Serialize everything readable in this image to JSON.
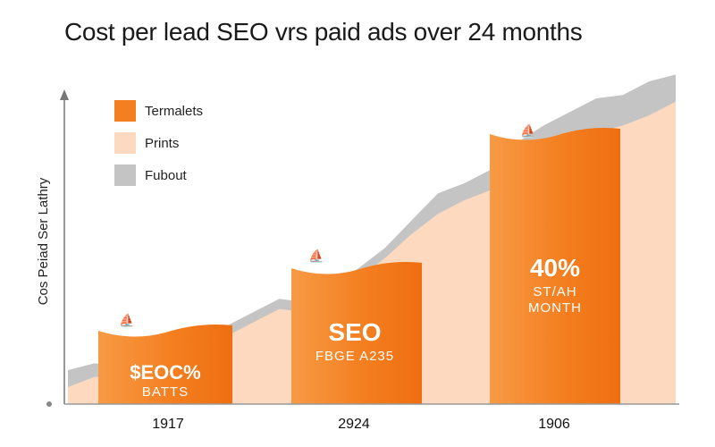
{
  "chart_data": {
    "type": "area",
    "title": "Cost per lead SEO vrs paid ads over 24 months",
    "ylabel": "Cos Peiad Ser Lathry",
    "legend": {
      "placement": "top-left",
      "entries": [
        {
          "label": "Termalets",
          "color": "#f47f20"
        },
        {
          "label": "Prints",
          "color": "#fdd9bf"
        },
        {
          "label": "Fubout",
          "color": "#c4c4c4"
        }
      ]
    },
    "x_ticks": [
      "1917",
      "2924",
      "1906"
    ],
    "bars": [
      {
        "x_label": "1917",
        "value_text": "$EOC%",
        "sub_text": "BATTS"
      },
      {
        "x_label": "2924",
        "value_text": "SEO",
        "sub_text": "FBGE A235"
      },
      {
        "x_label": "1906",
        "value_text": "40%",
        "sub_text": "ST/AH",
        "sub_text2": "MONTH"
      }
    ],
    "series": [
      {
        "name": "Fubout",
        "color": "#c4c4c4",
        "values": [
          0.1,
          0.12,
          0.11,
          0.13,
          0.14,
          0.18,
          0.23,
          0.27,
          0.31,
          0.3,
          0.35,
          0.4,
          0.46,
          0.54,
          0.62,
          0.65,
          0.69,
          0.77,
          0.82,
          0.86,
          0.9,
          0.91,
          0.95,
          0.97
        ]
      },
      {
        "name": "Prints",
        "color": "#fdd9bf",
        "values": [
          0.05,
          0.08,
          0.08,
          0.1,
          0.12,
          0.15,
          0.2,
          0.24,
          0.28,
          0.27,
          0.33,
          0.37,
          0.43,
          0.5,
          0.56,
          0.6,
          0.63,
          0.68,
          0.74,
          0.78,
          0.8,
          0.82,
          0.85,
          0.89
        ]
      }
    ],
    "grid": false,
    "y_ticks_shown": false
  }
}
